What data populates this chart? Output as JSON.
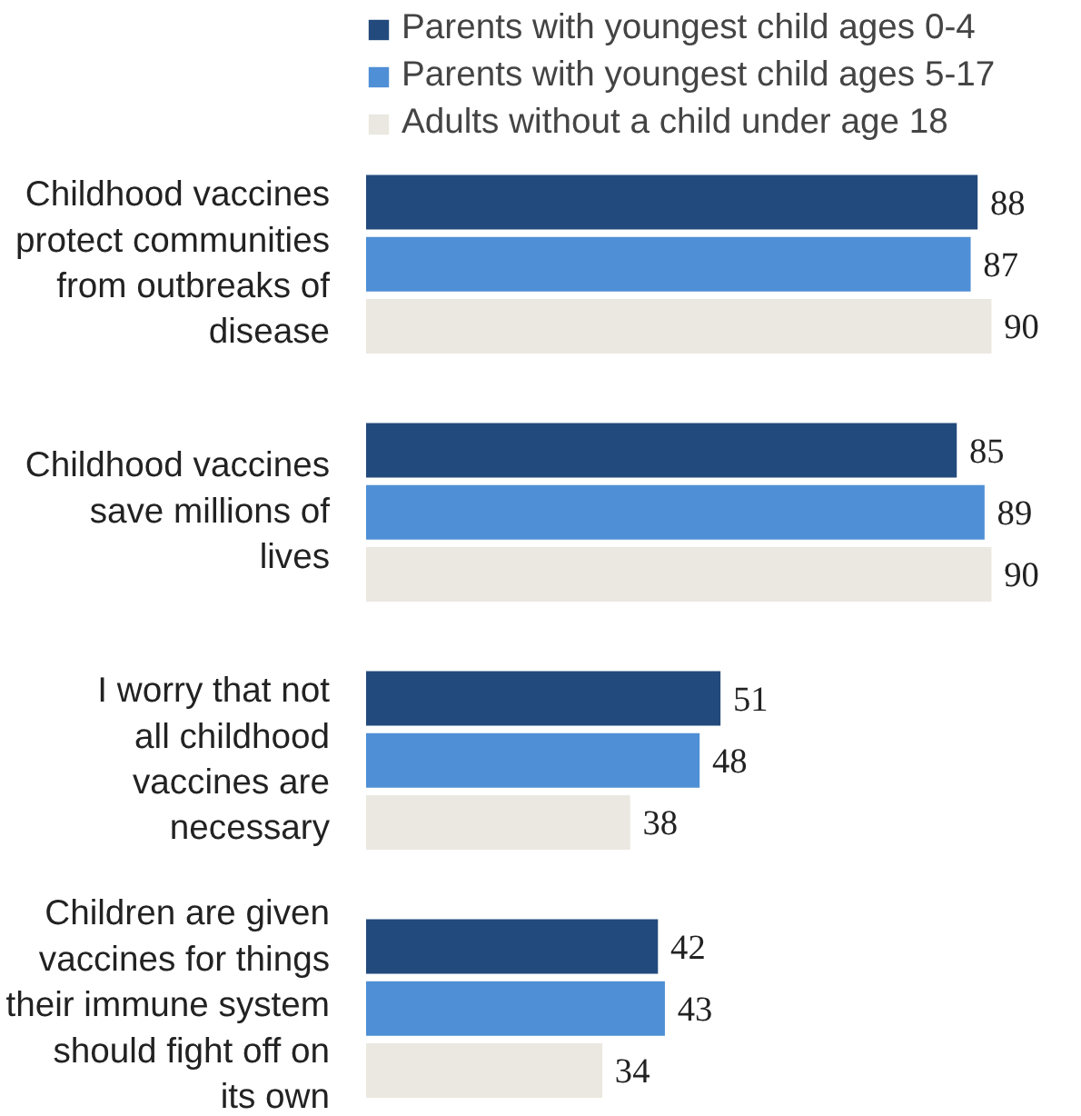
{
  "chart_data": {
    "type": "bar",
    "orientation": "horizontal",
    "categories": [
      "Childhood vaccines protect communities from outbreaks of disease",
      "Childhood vaccines save millions of lives",
      "I worry that not all childhood vaccines are necessary",
      "Children are given vaccines for things their immune system should fight off on its own"
    ],
    "series": [
      {
        "name": "Parents with youngest child ages 0-4",
        "color": "#234a7c",
        "values": [
          88,
          85,
          51,
          42
        ]
      },
      {
        "name": "Parents with youngest child ages 5-17",
        "color": "#4f8fd6",
        "values": [
          87,
          89,
          48,
          43
        ]
      },
      {
        "name": "Adults without a child under age 18",
        "color": "#ebe8e1",
        "values": [
          90,
          90,
          38,
          34
        ]
      }
    ],
    "data_labels": true,
    "legend": "top",
    "grid": false
  }
}
